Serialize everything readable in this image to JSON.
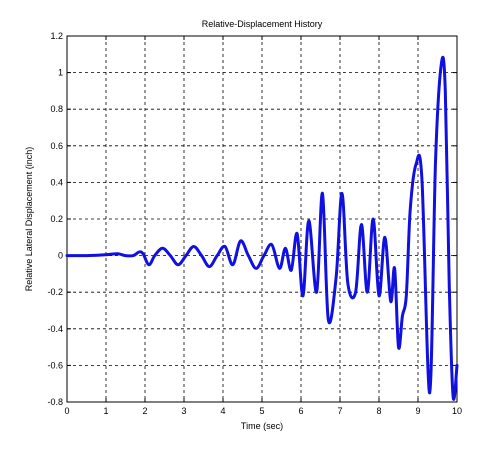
{
  "chart_data": {
    "type": "line",
    "title": "Relative-Displacement History",
    "xlabel": "Time (sec)",
    "ylabel": "Relative Lateral Displacement (inch)",
    "xlim": [
      0,
      10
    ],
    "ylim": [
      -0.8,
      1.2
    ],
    "xticks": [
      "0",
      "1",
      "2",
      "3",
      "4",
      "5",
      "6",
      "7",
      "8",
      "9",
      "10"
    ],
    "yticks": [
      "1.2",
      "1",
      "0.8",
      "0.6",
      "0.4",
      "0.2",
      "0",
      "-0.2",
      "-0.4",
      "-0.6",
      "-0.8"
    ],
    "grid": true,
    "color": "#1010e0",
    "series": [
      {
        "x": [
          0,
          0.5,
          1.0,
          1.3,
          1.5,
          1.7,
          1.85,
          1.95,
          2.1,
          2.25,
          2.45,
          2.65,
          2.85,
          3.05,
          3.25,
          3.45,
          3.65,
          3.85,
          4.05,
          4.25,
          4.45,
          4.65,
          4.85,
          5.05,
          5.25,
          5.45,
          5.6,
          5.75,
          5.9,
          6.05,
          6.2,
          6.4,
          6.55,
          6.7,
          6.9,
          7.05,
          7.2,
          7.4,
          7.55,
          7.7,
          7.85,
          8.0,
          8.15,
          8.3,
          8.4,
          8.5,
          8.6,
          8.7,
          8.8,
          8.95,
          9.1,
          9.3,
          9.45,
          9.6,
          9.7,
          9.8,
          9.9,
          10.0
        ],
        "y": [
          0.0,
          0.0,
          0.005,
          0.01,
          0.0,
          0.0,
          0.02,
          0.01,
          -0.05,
          0.0,
          0.04,
          0.0,
          -0.05,
          0.0,
          0.05,
          0.0,
          -0.06,
          0.0,
          0.05,
          -0.05,
          0.08,
          0.0,
          -0.07,
          0.0,
          0.06,
          -0.07,
          0.04,
          -0.08,
          0.12,
          -0.22,
          0.19,
          -0.2,
          0.34,
          -0.35,
          -0.12,
          0.34,
          -0.15,
          -0.2,
          0.17,
          -0.2,
          0.2,
          -0.22,
          0.1,
          -0.25,
          -0.07,
          -0.5,
          -0.33,
          -0.22,
          0.25,
          0.5,
          0.42,
          -0.75,
          0.52,
          1.05,
          0.9,
          -0.15,
          -0.77,
          -0.6
        ]
      }
    ]
  }
}
